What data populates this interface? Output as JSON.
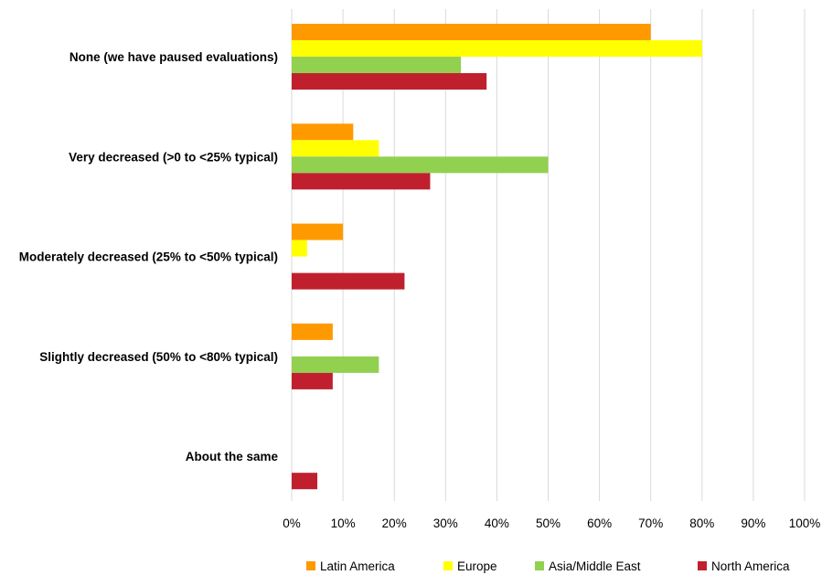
{
  "chart_data": {
    "type": "bar",
    "orientation": "horizontal",
    "categories": [
      "None (we have paused evaluations)",
      "Very decreased (>0 to <25% typical)",
      "Moderately decreased (25% to <50% typical)",
      "Slightly decreased (50% to <80% typical)",
      "About the same"
    ],
    "series": [
      {
        "name": "Latin America",
        "color": "#FF9900",
        "values": [
          70,
          12,
          10,
          8,
          0
        ]
      },
      {
        "name": "Europe",
        "color": "#FFFF00",
        "values": [
          80,
          17,
          3,
          0,
          0
        ]
      },
      {
        "name": "Asia/Middle East",
        "color": "#92D050",
        "values": [
          33,
          50,
          0,
          17,
          0
        ]
      },
      {
        "name": "North America",
        "color": "#C0202E",
        "values": [
          38,
          27,
          22,
          8,
          5
        ]
      }
    ],
    "xlim": [
      0,
      100
    ],
    "x_ticks": [
      "0%",
      "10%",
      "20%",
      "30%",
      "40%",
      "50%",
      "60%",
      "70%",
      "80%",
      "90%",
      "100%"
    ],
    "grid": true,
    "legend_position": "bottom",
    "title": "",
    "xlabel": "",
    "ylabel": ""
  }
}
